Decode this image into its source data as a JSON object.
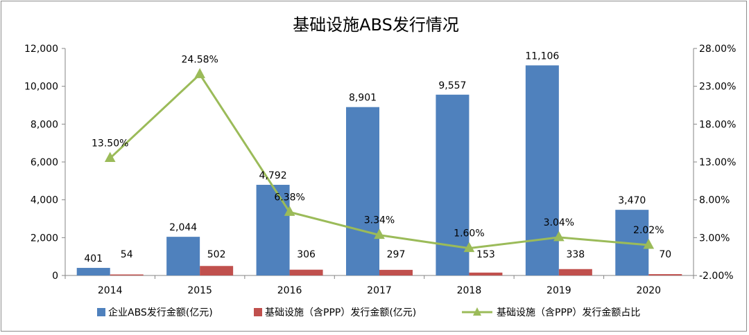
{
  "chart_data": {
    "type": "bar",
    "title": "基础设施ABS发行情况",
    "categories": [
      "2014",
      "2015",
      "2016",
      "2017",
      "2018",
      "2019",
      "2020"
    ],
    "series": [
      {
        "name": "企业ABS发行金额(亿元)",
        "kind": "bar",
        "color": "#4f81bd",
        "axis": "left",
        "values": [
          401,
          2044,
          4792,
          8901,
          9557,
          11106,
          3470
        ],
        "labels": [
          "401",
          "2,044",
          "4,792",
          "8,901",
          "9,557",
          "11,106",
          "3,470"
        ]
      },
      {
        "name": "基础设施（含PPP）发行金额(亿元)",
        "kind": "bar",
        "color": "#c0504d",
        "axis": "left",
        "values": [
          54,
          502,
          306,
          297,
          153,
          338,
          70
        ],
        "labels": [
          "54",
          "502",
          "306",
          "297",
          "153",
          "338",
          "70"
        ]
      },
      {
        "name": "基础设施（含PPP）发行金额占比",
        "kind": "line",
        "color": "#9bbb59",
        "axis": "right",
        "values": [
          13.5,
          24.58,
          6.38,
          3.34,
          1.6,
          3.04,
          2.02
        ],
        "labels": [
          "13.50%",
          "24.58%",
          "6.38%",
          "3.34%",
          "1.60%",
          "3.04%",
          "2.02%"
        ]
      }
    ],
    "y_left": {
      "min": 0,
      "max": 12000,
      "ticks": [
        0,
        2000,
        4000,
        6000,
        8000,
        10000,
        12000
      ],
      "tick_labels": [
        "0",
        "2,000",
        "4,000",
        "6,000",
        "8,000",
        "10,000",
        "12,000"
      ]
    },
    "y_right": {
      "min": -2,
      "max": 28,
      "ticks": [
        -2,
        3,
        8,
        13,
        18,
        23,
        28
      ],
      "tick_labels": [
        "-2.00%",
        "3.00%",
        "8.00%",
        "13.00%",
        "18.00%",
        "23.00%",
        "28.00%"
      ]
    },
    "grid": false,
    "legend_position": "bottom"
  }
}
